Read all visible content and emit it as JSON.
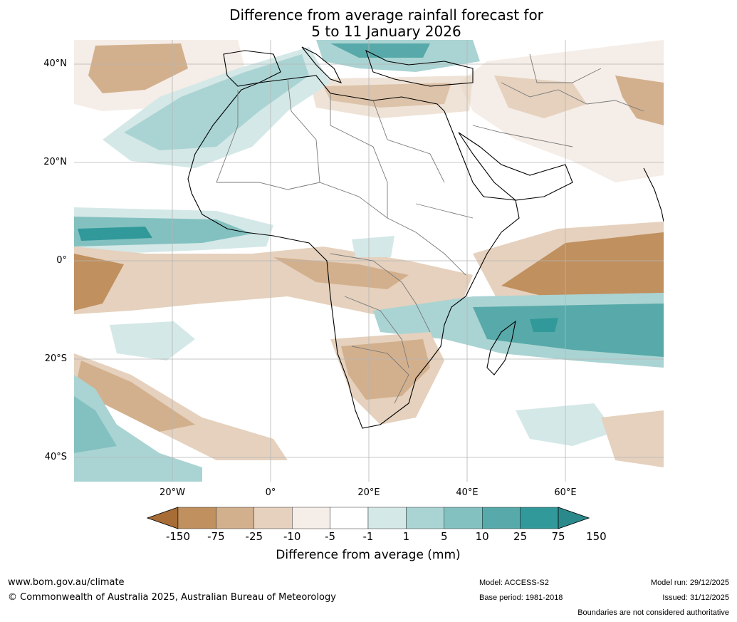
{
  "title": {
    "line1": "Difference from average rainfall forecast for",
    "line2": "5 to 11 January 2026"
  },
  "axes": {
    "lat_ticks": [
      {
        "value": 40,
        "label": "40°N"
      },
      {
        "value": 20,
        "label": "20°N"
      },
      {
        "value": 0,
        "label": "0°"
      },
      {
        "value": -20,
        "label": "20°S"
      },
      {
        "value": -40,
        "label": "40°S"
      }
    ],
    "lon_ticks": [
      {
        "value": -20,
        "label": "20°W"
      },
      {
        "value": 0,
        "label": "0°"
      },
      {
        "value": 20,
        "label": "20°E"
      },
      {
        "value": 40,
        "label": "40°E"
      },
      {
        "value": 60,
        "label": "60°E"
      }
    ]
  },
  "legend": {
    "label": "Difference from average (mm)",
    "ticks": [
      "-150",
      "-75",
      "-25",
      "-10",
      "-5",
      "-1",
      "1",
      "5",
      "10",
      "25",
      "75",
      "150"
    ],
    "colors": [
      "#a86d37",
      "#c0905f",
      "#d3b08d",
      "#e5d1bd",
      "#f5ede7",
      "#ffffff",
      "#d4e8e7",
      "#aad4d3",
      "#83c1c0",
      "#57aaa9",
      "#32999a",
      "#2a8a8b"
    ]
  },
  "footer": {
    "website": "www.bom.gov.au/climate",
    "copyright": "© Commonwealth of Australia 2025, Australian Bureau of Meteorology",
    "model": "Model: ACCESS-S2",
    "base_period": "Base period: 1981-2018",
    "model_run": "Model run: 29/12/2025",
    "issued": "Issued: 31/12/2025",
    "disclaimer": "Boundaries are not considered authoritative"
  }
}
